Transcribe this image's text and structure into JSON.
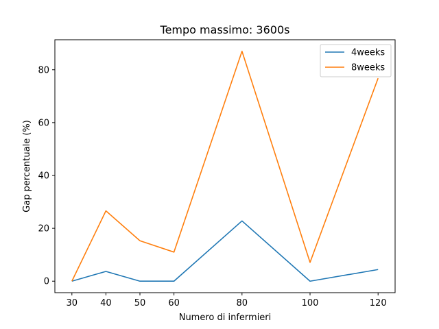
{
  "chart_data": {
    "type": "line",
    "title": "Tempo massimo: 3600s",
    "xlabel": "Numero di infermieri",
    "ylabel": "Gap percentuale (%)",
    "x": [
      30,
      40,
      50,
      60,
      80,
      100,
      120
    ],
    "xticks": [
      30,
      40,
      50,
      60,
      80,
      100,
      120
    ],
    "yticks": [
      0,
      20,
      40,
      60,
      80
    ],
    "xlim": [
      25,
      125
    ],
    "ylim": [
      -4.35,
      91.35
    ],
    "grid": false,
    "legend_position": "top-right",
    "series": [
      {
        "name": "4weeks",
        "color": "#1f77b4",
        "values": [
          0,
          3.7,
          0,
          0,
          22.8,
          0,
          4.4
        ]
      },
      {
        "name": "8weeks",
        "color": "#ff7f0e",
        "values": [
          0,
          26.6,
          15.3,
          11.0,
          87.0,
          7.1,
          76.8
        ]
      }
    ]
  }
}
